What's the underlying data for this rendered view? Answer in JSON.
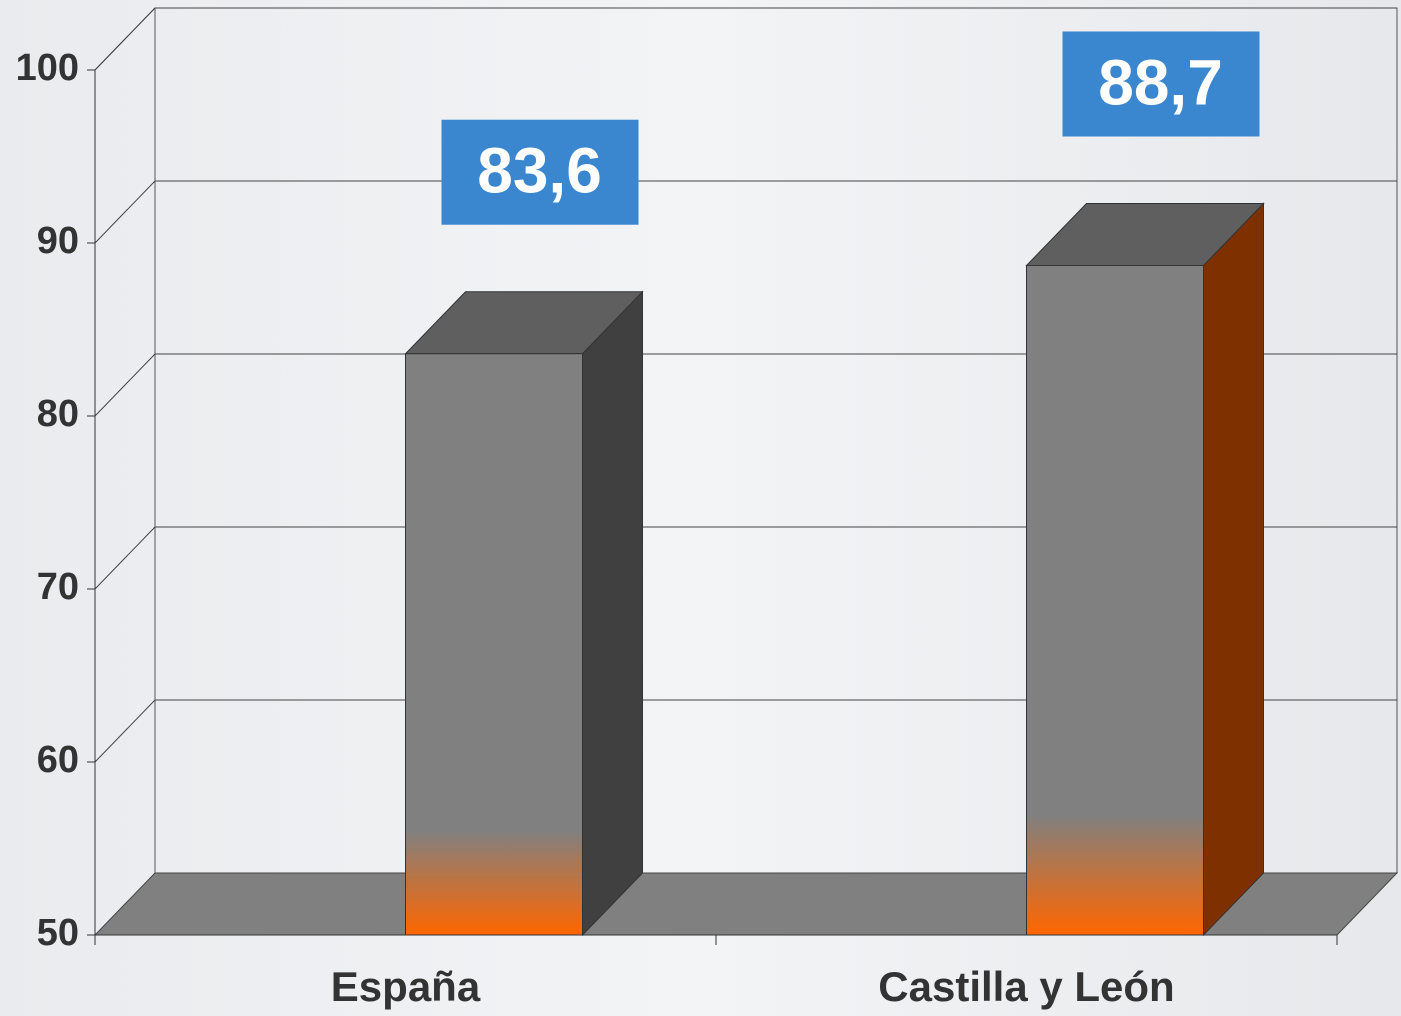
{
  "chart_data": {
    "type": "bar3d",
    "categories": [
      "España",
      "Castilla y León"
    ],
    "values": [
      83.6,
      88.7
    ],
    "value_labels": [
      "83,6",
      "88,7"
    ],
    "color": "#808080",
    "base_color": "#ff6600",
    "side_colors": [
      "#404040",
      "#7f3000"
    ],
    "top_color": "#5f5f5f",
    "label_color": "#3a87d0",
    "ylim": [
      50,
      100
    ],
    "yticks": [
      50,
      60,
      70,
      80,
      90,
      100
    ],
    "grid": true
  }
}
